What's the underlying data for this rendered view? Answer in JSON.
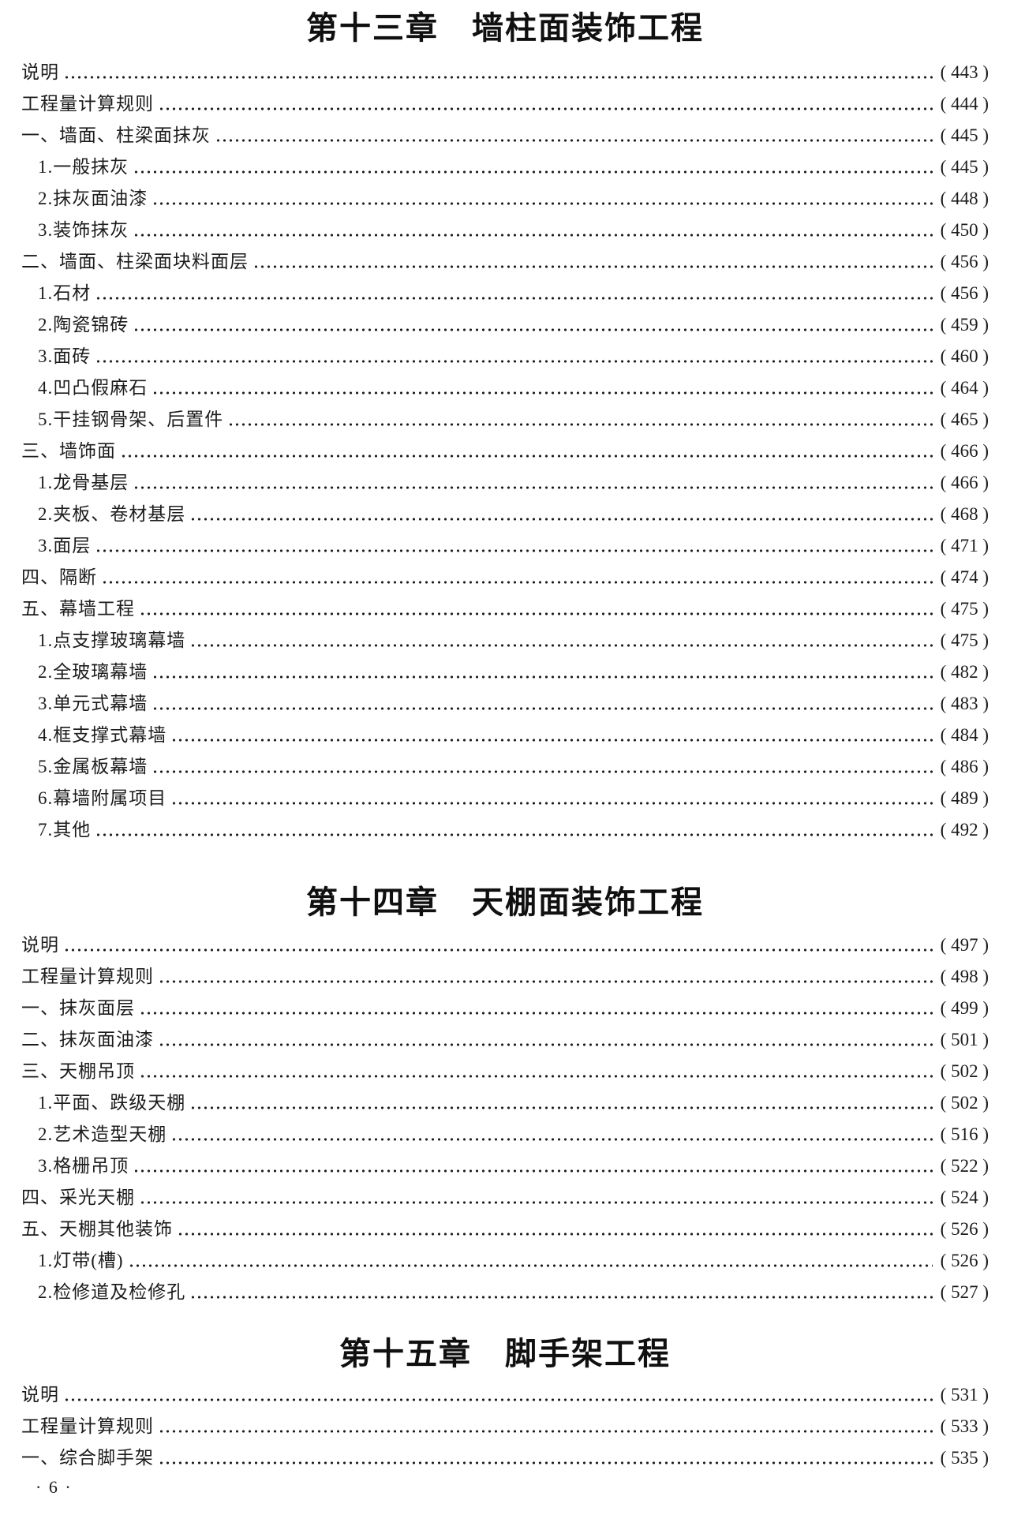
{
  "sections": [
    {
      "title": "第十三章　墙柱面装饰工程",
      "items": [
        {
          "label": "说明",
          "page": "( 443 )",
          "level": 0
        },
        {
          "label": "工程量计算规则",
          "page": "( 444 )",
          "level": 0
        },
        {
          "label": "一、墙面、柱梁面抹灰",
          "page": "( 445 )",
          "level": 0
        },
        {
          "label": "1.一般抹灰",
          "page": "( 445 )",
          "level": 1
        },
        {
          "label": "2.抹灰面油漆",
          "page": "( 448 )",
          "level": 1
        },
        {
          "label": "3.装饰抹灰",
          "page": "( 450 )",
          "level": 1
        },
        {
          "label": "二、墙面、柱梁面块料面层",
          "page": "( 456 )",
          "level": 0
        },
        {
          "label": "1.石材",
          "page": "( 456 )",
          "level": 1
        },
        {
          "label": "2.陶瓷锦砖",
          "page": "( 459 )",
          "level": 1
        },
        {
          "label": "3.面砖",
          "page": "( 460 )",
          "level": 1
        },
        {
          "label": "4.凹凸假麻石",
          "page": "( 464 )",
          "level": 1
        },
        {
          "label": "5.干挂钢骨架、后置件",
          "page": "( 465 )",
          "level": 1
        },
        {
          "label": "三、墙饰面",
          "page": "( 466 )",
          "level": 0
        },
        {
          "label": "1.龙骨基层",
          "page": "( 466 )",
          "level": 1
        },
        {
          "label": "2.夹板、卷材基层",
          "page": "( 468 )",
          "level": 1
        },
        {
          "label": "3.面层",
          "page": "( 471 )",
          "level": 1
        },
        {
          "label": "四、隔断",
          "page": "( 474 )",
          "level": 0
        },
        {
          "label": "五、幕墙工程",
          "page": "( 475 )",
          "level": 0
        },
        {
          "label": "1.点支撑玻璃幕墙",
          "page": "( 475 )",
          "level": 1
        },
        {
          "label": "2.全玻璃幕墙",
          "page": "( 482 )",
          "level": 1
        },
        {
          "label": "3.单元式幕墙",
          "page": "( 483 )",
          "level": 1
        },
        {
          "label": "4.框支撑式幕墙",
          "page": "( 484 )",
          "level": 1
        },
        {
          "label": "5.金属板幕墙",
          "page": "( 486 )",
          "level": 1
        },
        {
          "label": "6.幕墙附属项目",
          "page": "( 489 )",
          "level": 1
        },
        {
          "label": "7.其他",
          "page": "( 492 )",
          "level": 1
        }
      ]
    },
    {
      "title": "第十四章　天棚面装饰工程",
      "items": [
        {
          "label": "说明",
          "page": "( 497 )",
          "level": 0
        },
        {
          "label": "工程量计算规则",
          "page": "( 498 )",
          "level": 0
        },
        {
          "label": "一、抹灰面层",
          "page": "( 499 )",
          "level": 0
        },
        {
          "label": "二、抹灰面油漆",
          "page": "( 501 )",
          "level": 0
        },
        {
          "label": "三、天棚吊顶",
          "page": "( 502 )",
          "level": 0
        },
        {
          "label": "1.平面、跌级天棚",
          "page": "( 502 )",
          "level": 1
        },
        {
          "label": "2.艺术造型天棚",
          "page": "( 516 )",
          "level": 1
        },
        {
          "label": "3.格栅吊顶",
          "page": "( 522 )",
          "level": 1
        },
        {
          "label": "四、采光天棚",
          "page": "( 524 )",
          "level": 0
        },
        {
          "label": "五、天棚其他装饰",
          "page": "( 526 )",
          "level": 0
        },
        {
          "label": "1.灯带(槽)",
          "page": "( 526 )",
          "level": 1
        },
        {
          "label": "2.检修道及检修孔",
          "page": "( 527 )",
          "level": 1
        }
      ]
    },
    {
      "title": "第十五章　脚手架工程",
      "items": [
        {
          "label": "说明",
          "page": "( 531 )",
          "level": 0
        },
        {
          "label": "工程量计算规则",
          "page": "( 533 )",
          "level": 0
        },
        {
          "label": "一、综合脚手架",
          "page": "( 535 )",
          "level": 0
        }
      ]
    }
  ],
  "footer": {
    "page_label": "· 6 ·"
  }
}
